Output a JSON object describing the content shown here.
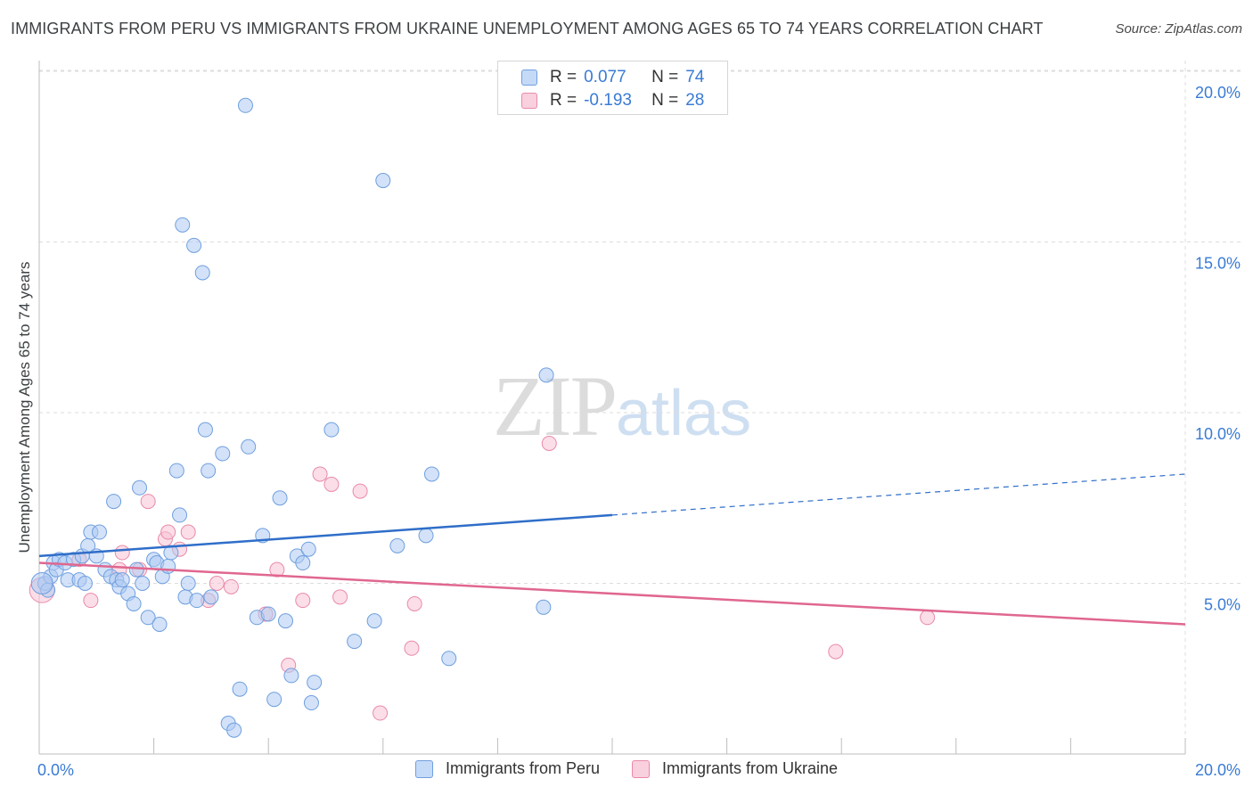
{
  "header": {
    "title": "IMMIGRANTS FROM PERU VS IMMIGRANTS FROM UKRAINE UNEMPLOYMENT AMONG AGES 65 TO 74 YEARS CORRELATION CHART",
    "source": "Source: ZipAtlas.com"
  },
  "watermark": {
    "zip": "ZIP",
    "atlas": "atlas"
  },
  "legend": {
    "peru": {
      "r_label": "R =",
      "r_value": "0.077",
      "n_label": "N =",
      "n_value": "74"
    },
    "ukraine": {
      "r_label": "R =",
      "r_value": "-0.193",
      "n_label": "N =",
      "n_value": "28"
    }
  },
  "colors": {
    "peru_fill": "#aecbf3",
    "peru_stroke": "#6f9fdf",
    "peru_line": "#2f6ec9",
    "ukraine_fill": "#f7c3d3",
    "ukraine_stroke": "#e98aa9",
    "ukraine_line": "#e0678f",
    "tick_label": "#3a7bd5",
    "grid": "#dcdcdc"
  },
  "chart_data": {
    "type": "scatter",
    "title": "IMMIGRANTS FROM PERU VS IMMIGRANTS FROM UKRAINE UNEMPLOYMENT AMONG AGES 65 TO 74 YEARS CORRELATION CHART",
    "xlabel": "",
    "ylabel": "Unemployment Among Ages 65 to 74 years",
    "xlim": [
      0,
      20
    ],
    "ylim": [
      0,
      20.5
    ],
    "x_tick_labels": [
      "0.0%",
      "20.0%"
    ],
    "y_ticks": [
      {
        "value": 5,
        "label": "5.0%"
      },
      {
        "value": 10,
        "label": "10.0%"
      },
      {
        "value": 15,
        "label": "15.0%"
      },
      {
        "value": 20,
        "label": "20.0%"
      }
    ],
    "series": [
      {
        "name": "Immigrants from Peru",
        "trend": {
          "x_start": 0,
          "y_start": 5.8,
          "x_solid_end": 10,
          "x_end": 20,
          "y_end": 8.2
        },
        "points": [
          [
            0.1,
            5.0
          ],
          [
            0.15,
            4.8
          ],
          [
            0.2,
            5.2
          ],
          [
            0.25,
            5.6
          ],
          [
            0.3,
            5.4
          ],
          [
            0.35,
            5.7
          ],
          [
            0.45,
            5.6
          ],
          [
            0.5,
            5.1
          ],
          [
            0.6,
            5.7
          ],
          [
            0.7,
            5.1
          ],
          [
            0.75,
            5.8
          ],
          [
            0.8,
            5.0
          ],
          [
            0.85,
            6.1
          ],
          [
            0.9,
            6.5
          ],
          [
            1.0,
            5.8
          ],
          [
            1.05,
            6.5
          ],
          [
            1.15,
            5.4
          ],
          [
            1.25,
            5.2
          ],
          [
            1.3,
            7.4
          ],
          [
            1.35,
            5.1
          ],
          [
            1.4,
            4.9
          ],
          [
            1.45,
            5.1
          ],
          [
            1.55,
            4.7
          ],
          [
            1.65,
            4.4
          ],
          [
            1.7,
            5.4
          ],
          [
            1.75,
            7.8
          ],
          [
            1.8,
            5.0
          ],
          [
            1.9,
            4.0
          ],
          [
            2.0,
            5.7
          ],
          [
            2.05,
            5.6
          ],
          [
            2.1,
            3.8
          ],
          [
            2.15,
            5.2
          ],
          [
            2.25,
            5.5
          ],
          [
            2.3,
            5.9
          ],
          [
            2.4,
            8.3
          ],
          [
            2.45,
            7.0
          ],
          [
            2.5,
            15.5
          ],
          [
            2.55,
            4.6
          ],
          [
            2.6,
            5.0
          ],
          [
            2.7,
            14.9
          ],
          [
            2.75,
            4.5
          ],
          [
            2.85,
            14.1
          ],
          [
            2.9,
            9.5
          ],
          [
            2.95,
            8.3
          ],
          [
            3.0,
            4.6
          ],
          [
            3.2,
            8.8
          ],
          [
            3.3,
            0.9
          ],
          [
            3.4,
            0.7
          ],
          [
            3.5,
            1.9
          ],
          [
            3.6,
            19.0
          ],
          [
            3.65,
            9.0
          ],
          [
            3.8,
            4.0
          ],
          [
            3.9,
            6.4
          ],
          [
            4.0,
            4.1
          ],
          [
            4.1,
            1.6
          ],
          [
            4.2,
            7.5
          ],
          [
            4.3,
            3.9
          ],
          [
            4.4,
            2.3
          ],
          [
            4.5,
            5.8
          ],
          [
            4.6,
            5.6
          ],
          [
            4.7,
            6.0
          ],
          [
            4.75,
            1.5
          ],
          [
            4.8,
            2.1
          ],
          [
            5.1,
            9.5
          ],
          [
            5.5,
            3.3
          ],
          [
            5.85,
            3.9
          ],
          [
            6.0,
            16.8
          ],
          [
            6.25,
            6.1
          ],
          [
            6.75,
            6.4
          ],
          [
            6.85,
            8.2
          ],
          [
            7.15,
            2.8
          ],
          [
            8.8,
            4.3
          ],
          [
            8.85,
            11.1
          ],
          [
            0.05,
            5.0
          ]
        ]
      },
      {
        "name": "Immigrants from Ukraine",
        "trend": {
          "x_start": 0,
          "y_start": 5.6,
          "x_end": 20,
          "y_end": 3.8
        },
        "points": [
          [
            0.05,
            4.8
          ],
          [
            0.7,
            5.7
          ],
          [
            0.9,
            4.5
          ],
          [
            1.4,
            5.4
          ],
          [
            1.45,
            5.9
          ],
          [
            1.75,
            5.4
          ],
          [
            1.9,
            7.4
          ],
          [
            2.2,
            6.3
          ],
          [
            2.25,
            6.5
          ],
          [
            2.45,
            6.0
          ],
          [
            2.6,
            6.5
          ],
          [
            2.95,
            4.5
          ],
          [
            3.1,
            5.0
          ],
          [
            3.35,
            4.9
          ],
          [
            3.95,
            4.1
          ],
          [
            4.15,
            5.4
          ],
          [
            4.35,
            2.6
          ],
          [
            4.6,
            4.5
          ],
          [
            4.9,
            8.2
          ],
          [
            5.1,
            7.9
          ],
          [
            5.25,
            4.6
          ],
          [
            5.6,
            7.7
          ],
          [
            5.95,
            1.2
          ],
          [
            6.5,
            3.1
          ],
          [
            6.55,
            4.4
          ],
          [
            8.9,
            9.1
          ],
          [
            13.9,
            3.0
          ],
          [
            15.5,
            4.0
          ]
        ]
      }
    ]
  },
  "bottom_legend": {
    "peru_label": "Immigrants from Peru",
    "ukraine_label": "Immigrants from Ukraine"
  }
}
